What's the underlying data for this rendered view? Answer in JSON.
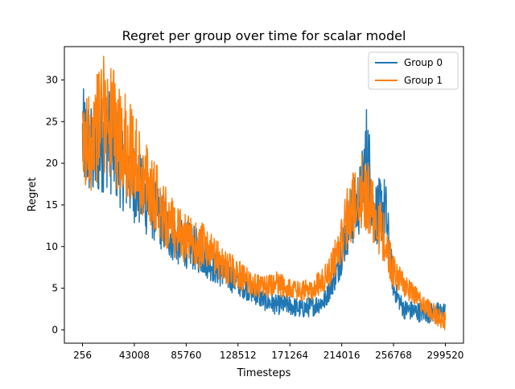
{
  "chart_data": {
    "type": "line",
    "title": "Regret per group over time for scalar model",
    "xlabel": "Timesteps",
    "ylabel": "Regret",
    "xlim": [
      -14707,
      314483
    ],
    "ylim": [
      -1.6,
      34.0
    ],
    "xticks": [
      256,
      43008,
      85760,
      128512,
      171264,
      214016,
      256768,
      299520
    ],
    "yticks": [
      0,
      5,
      10,
      15,
      20,
      25,
      30
    ],
    "legend_position": "top-right",
    "grid": false,
    "series": [
      {
        "name": "Group 0",
        "color": "#1f77b4",
        "x": [
          256,
          10000,
          20000,
          30000,
          40000,
          50000,
          60000,
          70000,
          80000,
          90000,
          100000,
          110000,
          120000,
          130000,
          140000,
          150000,
          160000,
          170000,
          180000,
          190000,
          200000,
          210000,
          220000,
          230000,
          235000,
          240000,
          250000,
          256768,
          265000,
          275000,
          285000,
          299520
        ],
        "values": [
          22.8,
          21.0,
          23.5,
          20.5,
          18.5,
          16.0,
          14.5,
          12.0,
          10.5,
          10.0,
          9.0,
          7.5,
          6.5,
          5.5,
          4.5,
          3.5,
          3.0,
          3.0,
          2.5,
          2.8,
          3.5,
          7.0,
          13.0,
          16.0,
          22.0,
          14.0,
          14.5,
          5.0,
          2.5,
          2.2,
          2.0,
          2.2
        ]
      },
      {
        "name": "Group 1",
        "color": "#ff7f0e",
        "x": [
          256,
          10000,
          20000,
          30000,
          40000,
          50000,
          60000,
          70000,
          80000,
          90000,
          100000,
          110000,
          120000,
          130000,
          140000,
          150000,
          160000,
          170000,
          180000,
          190000,
          200000,
          210000,
          220000,
          230000,
          235000,
          240000,
          250000,
          256768,
          265000,
          275000,
          285000,
          299520
        ],
        "values": [
          21.0,
          24.0,
          26.5,
          23.0,
          21.5,
          18.0,
          16.5,
          13.0,
          11.5,
          10.5,
          10.0,
          8.5,
          7.5,
          6.5,
          5.5,
          5.0,
          5.5,
          5.0,
          4.5,
          5.0,
          6.0,
          9.0,
          14.0,
          16.5,
          16.0,
          14.5,
          10.5,
          7.0,
          5.5,
          4.0,
          2.5,
          1.0
        ]
      }
    ]
  }
}
